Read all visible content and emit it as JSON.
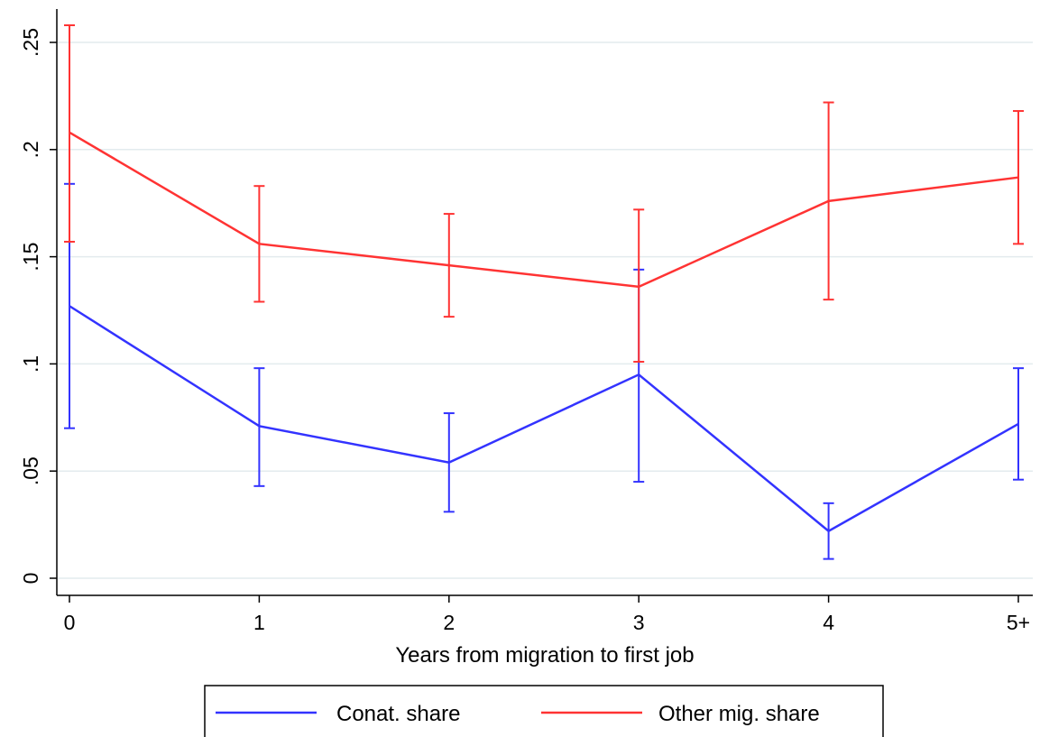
{
  "chart_data": {
    "type": "line",
    "categories": [
      "0",
      "1",
      "2",
      "3",
      "4",
      "5+"
    ],
    "xlabel": "Years from migration to first job",
    "ylabel": "",
    "title": "",
    "ylim": [
      0,
      0.26
    ],
    "yticks": [
      0,
      0.05,
      0.1,
      0.15,
      0.2,
      0.25
    ],
    "ytick_labels": [
      "0",
      ".05",
      ".1",
      ".15",
      ".2",
      ".25"
    ],
    "grid": "horizontal",
    "legend_position": "bottom",
    "series": [
      {
        "name": "Conat. share",
        "color": "#3333ff",
        "values": [
          0.127,
          0.071,
          0.054,
          0.095,
          0.022,
          0.072
        ],
        "ci_low": [
          0.07,
          0.043,
          0.031,
          0.045,
          0.009,
          0.046
        ],
        "ci_high": [
          0.184,
          0.098,
          0.077,
          0.144,
          0.035,
          0.098
        ]
      },
      {
        "name": "Other mig. share",
        "color": "#ff3333",
        "values": [
          0.208,
          0.156,
          0.146,
          0.136,
          0.176,
          0.187
        ],
        "ci_low": [
          0.157,
          0.129,
          0.122,
          0.101,
          0.13,
          0.156
        ],
        "ci_high": [
          0.258,
          0.183,
          0.17,
          0.172,
          0.222,
          0.218
        ]
      }
    ]
  }
}
